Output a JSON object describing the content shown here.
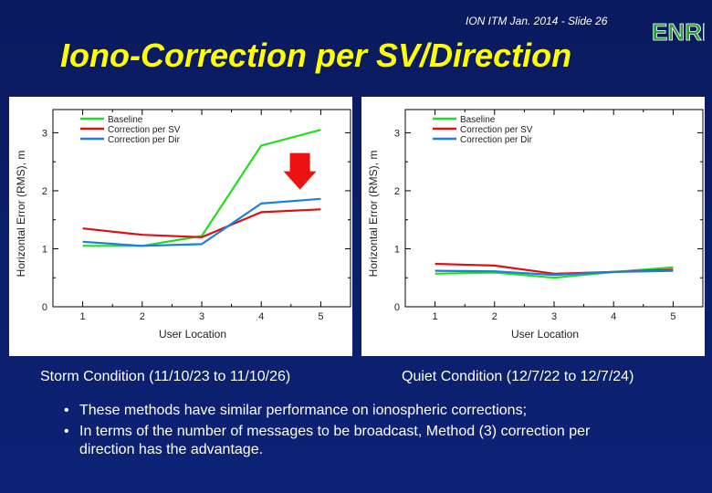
{
  "header": {
    "slide_info": "ION ITM Jan. 2014 - Slide 26"
  },
  "logo": {
    "text": "ENRI",
    "color": "#2e9e3a"
  },
  "title": "Iono-Correction per SV/Direction",
  "colors": {
    "baseline": "#22dd22",
    "correction_per_sv": "#dd1111",
    "correction_per_dir": "#1a7fe0",
    "arrow": "#ee1111",
    "title": "#ffff00"
  },
  "chart_data": [
    {
      "type": "line",
      "title": "",
      "xlabel": "User Location",
      "ylabel": "Horizontal Error (RMS), m",
      "x": [
        1,
        2,
        3,
        4,
        5
      ],
      "xlim": [
        0.5,
        5.5
      ],
      "ylim": [
        0,
        3.4
      ],
      "xticks": [
        "1",
        "2",
        "3",
        "4",
        "5"
      ],
      "yticks": [
        "0",
        "1",
        "2",
        "3"
      ],
      "legend": "top-left",
      "series": [
        {
          "name": "Baseline",
          "values": [
            1.05,
            1.05,
            1.22,
            2.78,
            3.05
          ]
        },
        {
          "name": "Correction per SV",
          "values": [
            1.35,
            1.24,
            1.2,
            1.63,
            1.68
          ]
        },
        {
          "name": "Correction per Dir",
          "values": [
            1.12,
            1.05,
            1.08,
            1.78,
            1.86
          ]
        }
      ],
      "annotation": {
        "type": "down-arrow",
        "x": 4.65,
        "y_top": 2.65,
        "y_bottom": 2.02
      }
    },
    {
      "type": "line",
      "title": "",
      "xlabel": "User Location",
      "ylabel": "Horizontal Error (RMS), m",
      "x": [
        1,
        2,
        3,
        4,
        5
      ],
      "xlim": [
        0.5,
        5.5
      ],
      "ylim": [
        0,
        3.4
      ],
      "xticks": [
        "1",
        "2",
        "3",
        "4",
        "5"
      ],
      "yticks": [
        "0",
        "1",
        "2",
        "3"
      ],
      "legend": "top-left",
      "series": [
        {
          "name": "Baseline",
          "values": [
            0.57,
            0.59,
            0.5,
            0.6,
            0.68
          ]
        },
        {
          "name": "Correction per SV",
          "values": [
            0.74,
            0.71,
            0.57,
            0.6,
            0.64
          ]
        },
        {
          "name": "Correction per Dir",
          "values": [
            0.62,
            0.61,
            0.55,
            0.6,
            0.62
          ]
        }
      ]
    }
  ],
  "captions": {
    "left": "Storm Condition (11/10/23 to 11/10/26)",
    "right": "Quiet Condition (12/7/22 to 12/7/24)"
  },
  "bullets": [
    "These methods have similar performance on ionospheric corrections;",
    "In terms of the number of messages to be broadcast, Method (3) correction per direction has the advantage."
  ],
  "bullet_marker": "•"
}
